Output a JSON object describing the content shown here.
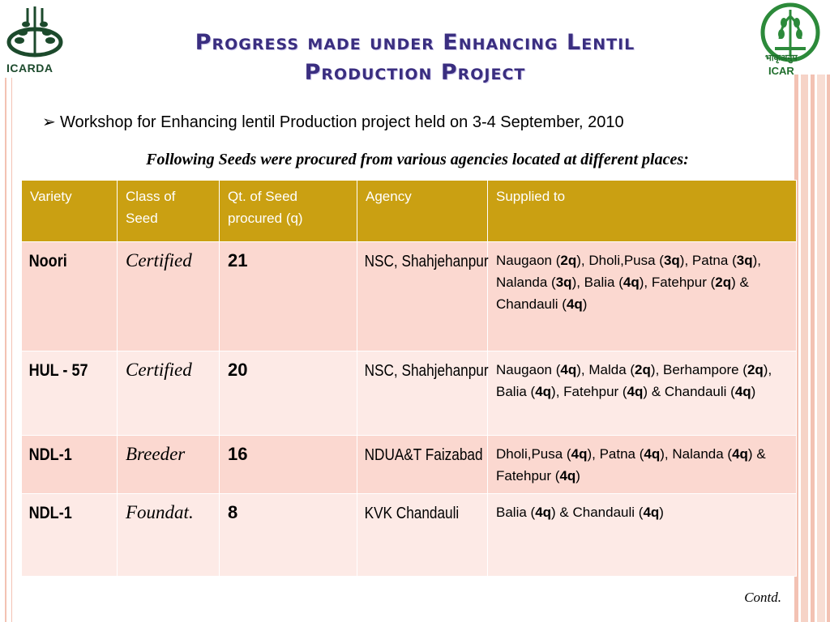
{
  "header": {
    "title_line1": "Progress made under Enhancing Lentil",
    "title_line2": "Production Project",
    "left_logo_text": "ICARDA",
    "right_logo_text": "ICAR",
    "right_logo_hindi": "भाकृअनुप"
  },
  "bullet": {
    "arrow": "➢",
    "text": "Workshop for Enhancing lentil Production project held on 3-4 September,  2010"
  },
  "subtitle": "Following Seeds were procured from various agencies located at different places:",
  "table": {
    "headers": [
      "Variety",
      "Class of Seed",
      "Qt. of Seed procured (q)",
      "Agency",
      "Supplied to"
    ],
    "rows": [
      {
        "variety": "Noori",
        "class": "Certified",
        "qty": "21",
        "agency": "NSC, Shahjehanpur",
        "supplied": "Naugaon (2q), Dholi,Pusa (3q), Patna (3q), Nalanda (3q), Balia (4q), Fatehpur (2q) & Chandauli (4q)"
      },
      {
        "variety": "HUL - 57",
        "class": "Certified",
        "qty": "20",
        "agency": "NSC, Shahjehanpur",
        "supplied": "Naugaon (4q), Malda (2q), Berhampore (2q), Balia (4q), Fatehpur (4q) & Chandauli (4q)"
      },
      {
        "variety": "NDL-1",
        "class": "Breeder",
        "qty": "16",
        "agency": "NDUA&T Faizabad",
        "supplied": "Dholi,Pusa (4q), Patna (4q), Nalanda (4q) & Fatehpur (4q)"
      },
      {
        "variety": "NDL-1",
        "class": "Foundat.",
        "qty": "8",
        "agency": "KVK Chandauli",
        "supplied": "Balia (4q) & Chandauli (4q)"
      }
    ]
  },
  "footer": {
    "contd": "Contd."
  },
  "colors": {
    "title": "#3a2e80",
    "header_bg": "#caa012",
    "row_odd": "#fbd8d0",
    "row_even": "#fdeae6",
    "stripe": "#f3c2b3"
  }
}
